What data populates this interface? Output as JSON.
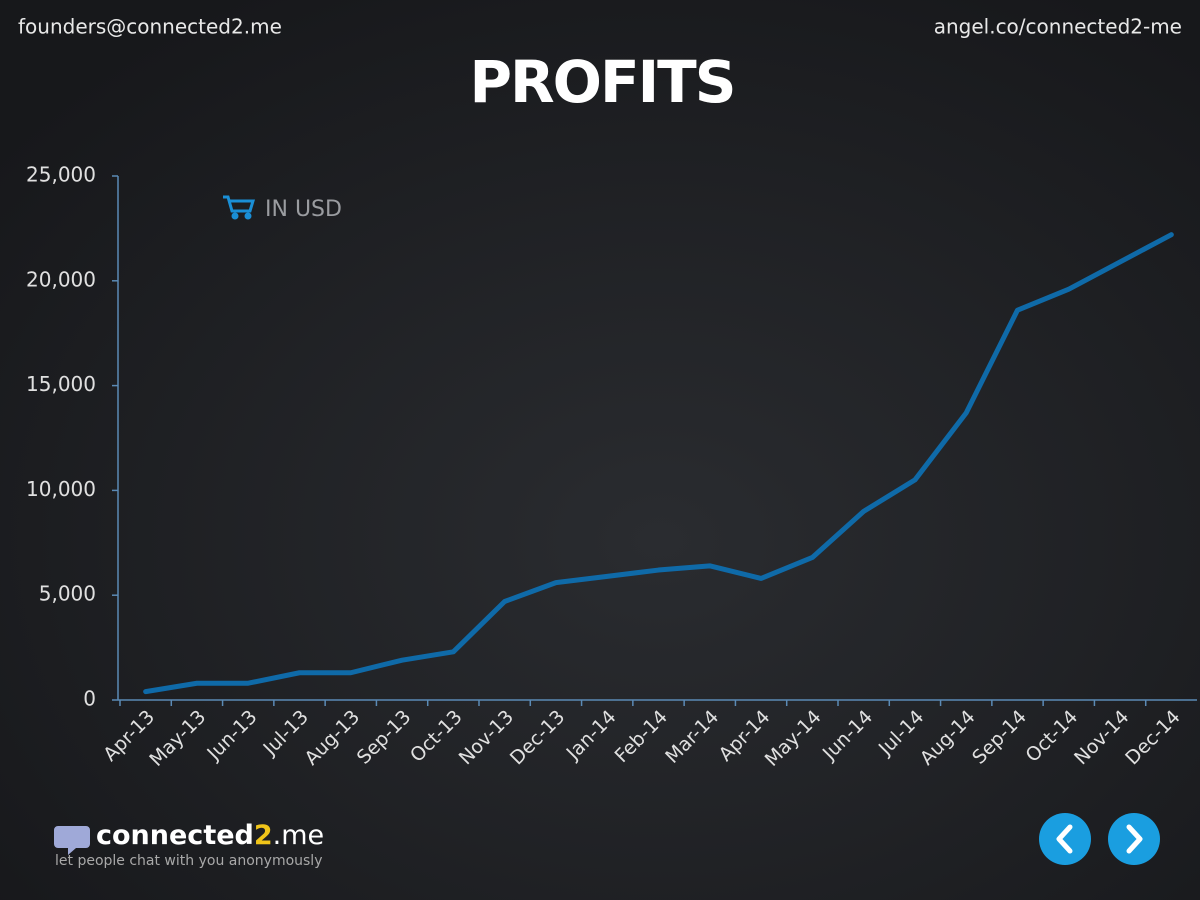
{
  "header": {
    "left": "founders@connected2.me",
    "right": "angel.co/connected2-me"
  },
  "chart_data": {
    "type": "line",
    "title": "PROFITS",
    "categories": [
      "Apr-13",
      "May-13",
      "Jun-13",
      "Jul-13",
      "Aug-13",
      "Sep-13",
      "Oct-13",
      "Nov-13",
      "Dec-13",
      "Jan-14",
      "Feb-14",
      "Mar-14",
      "Apr-14",
      "May-14",
      "Jun-14",
      "Jul-14",
      "Aug-14",
      "Sep-14",
      "Oct-14",
      "Nov-14",
      "Dec-14"
    ],
    "series": [
      {
        "name": "IN USD",
        "color": "#0f6aa8",
        "values": [
          400,
          800,
          800,
          1300,
          1300,
          1900,
          2300,
          4700,
          5600,
          5900,
          6200,
          6400,
          5800,
          6800,
          9000,
          10500,
          13700,
          18600,
          19600,
          20900,
          22200
        ]
      }
    ],
    "ylim": [
      0,
      25000
    ],
    "yticks": [
      0,
      {
        "value": 5000,
        "label": "5,000"
      },
      {
        "value": 10000,
        "label": "10,000"
      },
      {
        "value": 15000,
        "label": "15,000"
      },
      {
        "value": 20000,
        "label": "20,000"
      },
      {
        "value": 25000,
        "label": "25,000"
      }
    ],
    "grid": false
  },
  "footer": {
    "logo": [
      "connected",
      "2",
      ".me"
    ],
    "tagline": "let people chat with you anonymously"
  }
}
